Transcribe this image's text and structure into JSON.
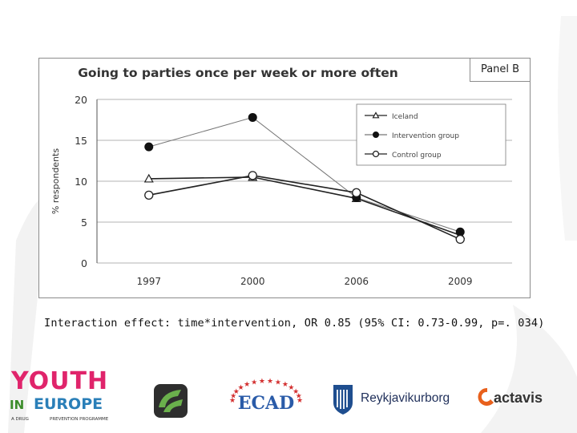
{
  "slide": {
    "caption": "Interaction effect: time*intervention, OR 0.85 (95% CI: 0.73-0.99, p=. 034)"
  },
  "chart_data": {
    "type": "line",
    "title": "Going to parties once per week or more often",
    "panel_label": "Panel B",
    "ylabel": "% respondents",
    "xlabel": "",
    "categories": [
      "1997",
      "2000",
      "2006",
      "2009"
    ],
    "ylim": [
      0,
      20
    ],
    "yticks": [
      0,
      5,
      10,
      15,
      20
    ],
    "grid": true,
    "legend_position": "top-right",
    "series": [
      {
        "name": "Iceland",
        "marker": "triangle",
        "color": "#222222",
        "values": [
          10.3,
          10.5,
          7.9,
          3.4
        ]
      },
      {
        "name": "Intervention group",
        "marker": "filled-circle",
        "color": "#777777",
        "values": [
          14.2,
          17.8,
          8.0,
          3.8
        ]
      },
      {
        "name": "Control group",
        "marker": "open-circle",
        "color": "#222222",
        "values": [
          8.3,
          10.7,
          8.6,
          2.9
        ]
      }
    ]
  },
  "logos": {
    "youth_line1": "YOUTH",
    "youth_in": "IN",
    "youth_line2": "EUROPE",
    "youth_tagline_left": "A DRUG",
    "youth_tagline_right": "PREVENTION PROGRAMME",
    "ecad": "ECAD",
    "reykjavik": "Reykjavikurborg",
    "actavis": "actavis"
  }
}
